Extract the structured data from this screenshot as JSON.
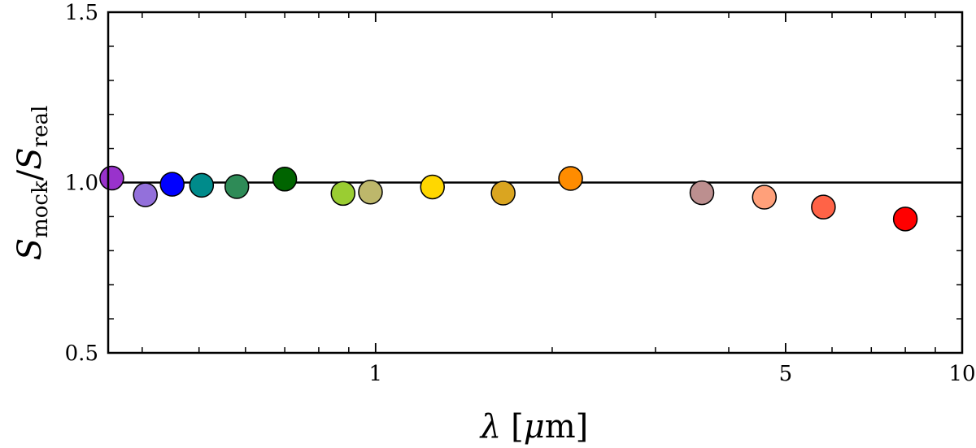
{
  "chart_data": {
    "type": "scatter",
    "title": "",
    "xlabel": {
      "main": "λ",
      "unit_prefix": "[",
      "unit_mu": "μ",
      "unit_rest": "m]"
    },
    "ylabel": {
      "num": "S",
      "num_sub": "mock",
      "slash": "/",
      "den": "S",
      "den_sub": "real"
    },
    "xscale": "log",
    "xlim": [
      0.35,
      10
    ],
    "ylim": [
      0.5,
      1.5
    ],
    "xticks": [
      {
        "value": 1,
        "label": "1"
      },
      {
        "value": 5,
        "label": "5"
      },
      {
        "value": 10,
        "label": "10"
      }
    ],
    "xminor": [
      0.4,
      0.5,
      0.6,
      0.7,
      0.8,
      0.9,
      2,
      3,
      4,
      6,
      7,
      8,
      9
    ],
    "yticks": [
      {
        "value": 0.5,
        "label": "0.5"
      },
      {
        "value": 1.0,
        "label": "1.0"
      },
      {
        "value": 1.5,
        "label": "1.5"
      }
    ],
    "yminor": [
      0.6,
      0.7,
      0.8,
      0.9,
      1.1,
      1.2,
      1.3,
      1.4
    ],
    "reference_line": 1.0,
    "grid": false,
    "points": [
      {
        "x": 0.355,
        "y": 1.013,
        "color": "#9932CC"
      },
      {
        "x": 0.405,
        "y": 0.964,
        "color": "#9370DB"
      },
      {
        "x": 0.45,
        "y": 0.995,
        "color": "#0000FF"
      },
      {
        "x": 0.505,
        "y": 0.992,
        "color": "#008B8B"
      },
      {
        "x": 0.58,
        "y": 0.988,
        "color": "#2E8B57"
      },
      {
        "x": 0.7,
        "y": 1.01,
        "color": "#006400"
      },
      {
        "x": 0.88,
        "y": 0.968,
        "color": "#9ACD32"
      },
      {
        "x": 0.98,
        "y": 0.972,
        "color": "#BDB76B"
      },
      {
        "x": 1.25,
        "y": 0.987,
        "color": "#FFD700"
      },
      {
        "x": 1.65,
        "y": 0.969,
        "color": "#DAA520"
      },
      {
        "x": 2.15,
        "y": 1.012,
        "color": "#FF8C00"
      },
      {
        "x": 3.6,
        "y": 0.97,
        "color": "#BC8F8F"
      },
      {
        "x": 4.6,
        "y": 0.957,
        "color": "#FFA07A"
      },
      {
        "x": 5.8,
        "y": 0.928,
        "color": "#FF6347"
      },
      {
        "x": 8.0,
        "y": 0.893,
        "color": "#FF0000"
      }
    ]
  }
}
